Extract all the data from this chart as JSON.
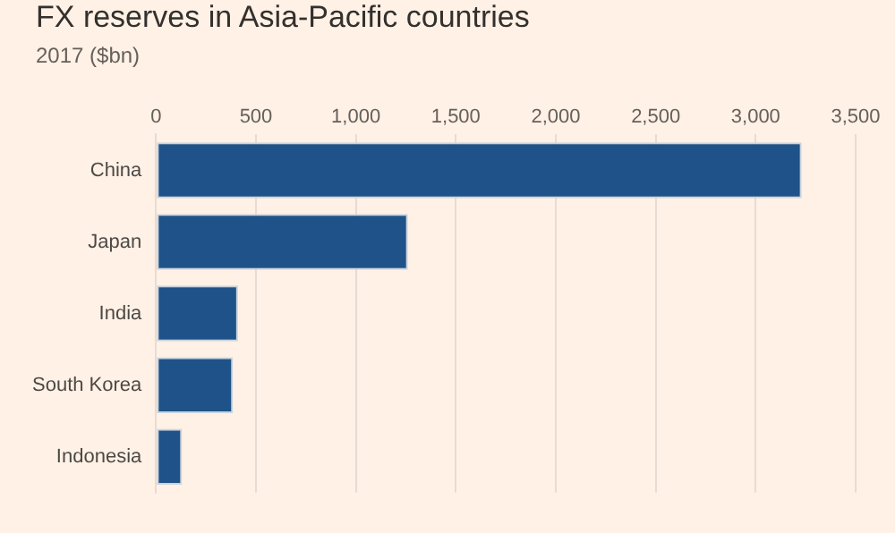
{
  "chart_data": {
    "type": "bar",
    "orientation": "horizontal",
    "title": "FX reserves in Asia-Pacific countries",
    "subtitle": "2017 ($bn)",
    "categories": [
      "China",
      "Japan",
      "India",
      "South Korea",
      "Indonesia"
    ],
    "values": [
      3230,
      1260,
      410,
      385,
      130
    ],
    "color": "#1f5288",
    "xlim": [
      0,
      3500
    ],
    "xticks": [
      0,
      {
        "value": 500,
        "label": "500"
      },
      {
        "value": 1000,
        "label": "1,000"
      },
      {
        "value": 1500,
        "label": "1,500"
      },
      {
        "value": 2000,
        "label": "2,000"
      },
      {
        "value": 2500,
        "label": "2,500"
      },
      {
        "value": 3000,
        "label": "3,000"
      },
      {
        "value": 3500,
        "label": "3,500"
      }
    ],
    "grid": "x"
  }
}
